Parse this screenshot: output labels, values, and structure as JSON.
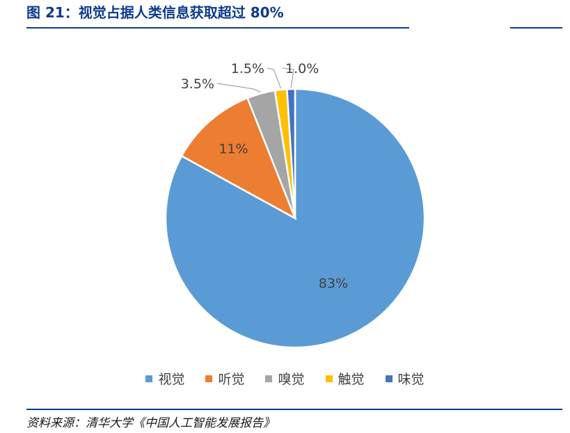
{
  "figure": {
    "title": "图 21：视觉占据人类信息获取超过 80%",
    "source": "资料来源：清华大学《中国人工智能发展报告》"
  },
  "chart_data": {
    "type": "pie",
    "title": "",
    "legend_position": "bottom",
    "slices": [
      {
        "name": "视觉",
        "value": 83,
        "label": "83%",
        "color": "#5b9bd5"
      },
      {
        "name": "听觉",
        "value": 11,
        "label": "11%",
        "color": "#ed7d31"
      },
      {
        "name": "嗅觉",
        "value": 3.5,
        "label": "3.5%",
        "color": "#a5a5a5"
      },
      {
        "name": "触觉",
        "value": 1.5,
        "label": "1.5%",
        "color": "#ffc000"
      },
      {
        "name": "味觉",
        "value": 1.0,
        "label": "1.0%",
        "color": "#4472c4"
      }
    ]
  }
}
